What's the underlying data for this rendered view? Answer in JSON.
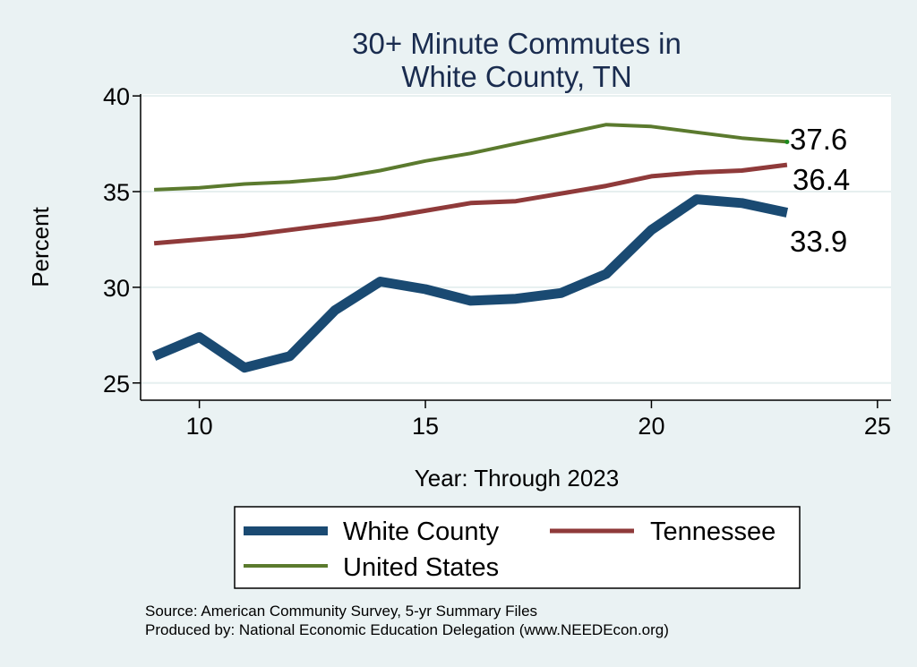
{
  "chart_data": {
    "type": "line",
    "title": [
      "30+ Minute Commutes in",
      "White County, TN"
    ],
    "xlabel": "Year: Through 2023",
    "ylabel": "Percent",
    "xlim": [
      8.7,
      25.3
    ],
    "ylim": [
      24.1,
      40.1
    ],
    "xticks": [
      10,
      15,
      20,
      25
    ],
    "yticks": [
      25,
      30,
      35,
      40
    ],
    "grid": true,
    "x": [
      9,
      10,
      11,
      12,
      13,
      14,
      15,
      16,
      17,
      18,
      19,
      20,
      21,
      22,
      23
    ],
    "series": [
      {
        "name": "White County",
        "color": "#1a4a72",
        "values": [
          26.4,
          27.4,
          25.8,
          26.4,
          28.8,
          30.3,
          29.9,
          29.3,
          29.4,
          29.7,
          30.7,
          33.0,
          34.6,
          34.4,
          33.9
        ],
        "end_label": "33.9"
      },
      {
        "name": "Tennessee",
        "color": "#8f3a3a",
        "values": [
          32.3,
          32.5,
          32.7,
          33.0,
          33.3,
          33.6,
          34.0,
          34.4,
          34.5,
          34.9,
          35.3,
          35.8,
          36.0,
          36.1,
          36.4
        ],
        "end_label": "36.4"
      },
      {
        "name": "United States",
        "color": "#5b7a2e",
        "values": [
          35.1,
          35.2,
          35.4,
          35.5,
          35.7,
          36.1,
          36.6,
          37.0,
          37.5,
          38.0,
          38.5,
          38.4,
          38.1,
          37.8,
          37.6
        ],
        "end_label": "37.6"
      }
    ],
    "legend_position": "bottom"
  },
  "source_lines": [
    "Source: American Community Survey, 5-yr Summary Files",
    "Produced by: National Economic Education Delegation (www.NEEDEcon.org)"
  ]
}
